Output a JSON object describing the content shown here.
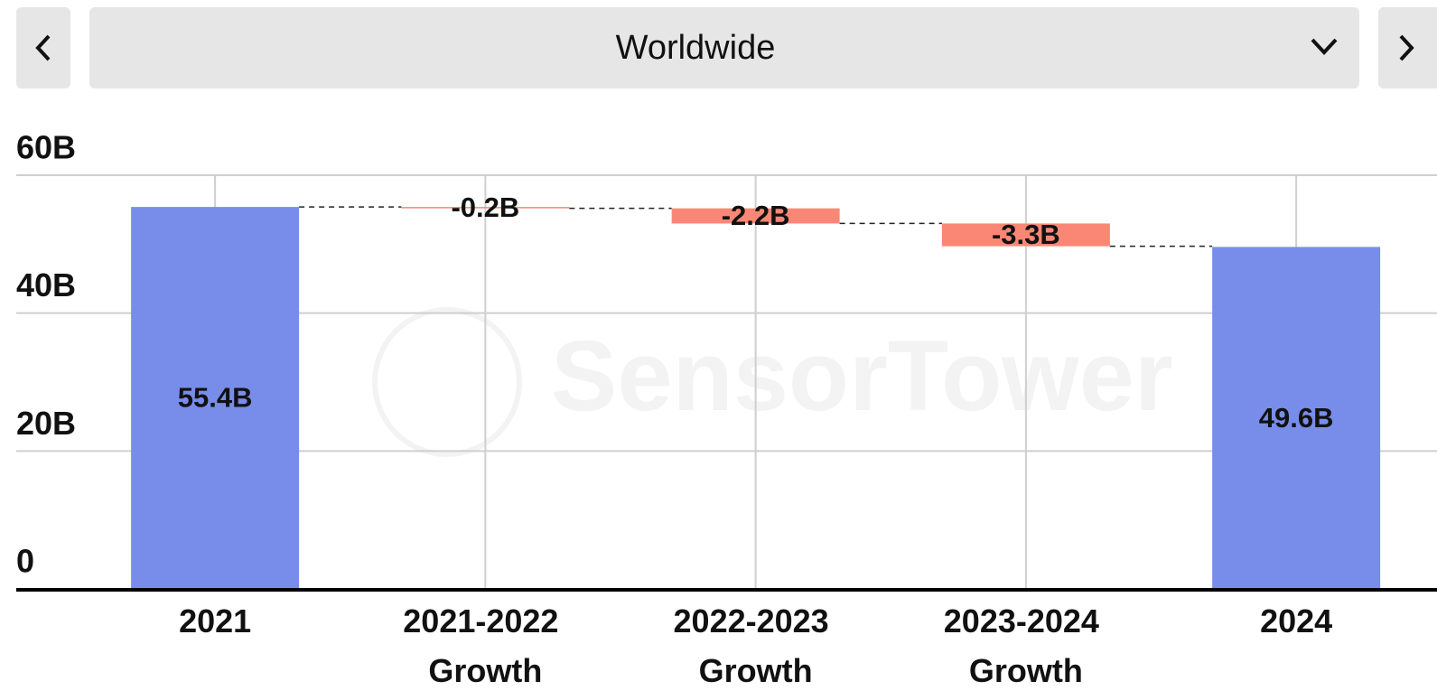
{
  "selector": {
    "label": "Worldwide"
  },
  "chart_data": {
    "type": "waterfall",
    "watermark": "SensorTower",
    "categories": [
      "2021",
      "2021-2022 Growth",
      "2022-2023 Growth",
      "2023-2024 Growth",
      "2024"
    ],
    "values": [
      55.4,
      -0.2,
      -2.2,
      -3.3,
      49.6
    ],
    "value_labels": [
      "55.4B",
      "-0.2B",
      "-2.2B",
      "-3.3B",
      "49.6B"
    ],
    "total_color": "#788dea",
    "decrease_color": "#fa8775",
    "ylim": [
      0,
      60
    ],
    "yticks": [
      0,
      {
        "value": 20,
        "label": "20B"
      },
      {
        "value": 40,
        "label": "40B"
      },
      {
        "value": 60,
        "label": "60B"
      }
    ],
    "grid": true
  }
}
